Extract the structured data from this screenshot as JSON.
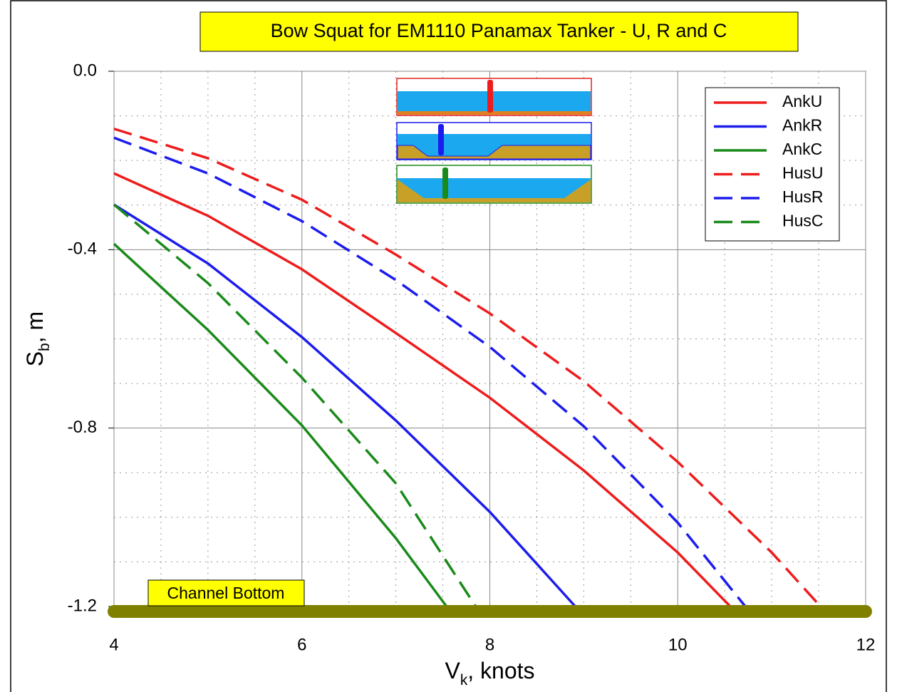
{
  "chart_data": {
    "type": "line",
    "title": "Bow Squat for EM1110 Panamax Tanker - U, R and C",
    "xlabel_parts": [
      "V",
      "k",
      ", knots"
    ],
    "ylabel_parts": [
      "S",
      "b",
      ", m"
    ],
    "xlim": [
      4,
      12
    ],
    "xticks": [
      4,
      6,
      8,
      10,
      12
    ],
    "ylim": [
      -1.2,
      0
    ],
    "yticks": [
      {
        "value": 0,
        "label": "0.0"
      },
      -0.4,
      -0.8,
      -1.2
    ],
    "grid": true,
    "minor_grid_divisions": 4,
    "legend": "upper right",
    "annotation": {
      "text": "Channel Bottom",
      "value": -1.2,
      "color": "#808000"
    },
    "series": [
      {
        "name": "AnkU",
        "color": "#ee1c1c",
        "dashed": false,
        "x": [
          4,
          5,
          6,
          7,
          8,
          9,
          10,
          10.56
        ],
        "values": [
          -0.229,
          -0.324,
          -0.444,
          -0.587,
          -0.732,
          -0.895,
          -1.079,
          -1.2
        ]
      },
      {
        "name": "AnkR",
        "color": "#1c1cee",
        "dashed": false,
        "x": [
          4,
          5,
          6,
          7,
          8,
          8.91
        ],
        "values": [
          -0.299,
          -0.431,
          -0.596,
          -0.783,
          -0.988,
          -1.2
        ]
      },
      {
        "name": "AnkC",
        "color": "#1a8a1a",
        "dashed": false,
        "x": [
          4,
          5,
          6,
          7,
          7.54
        ],
        "values": [
          -0.387,
          -0.58,
          -0.794,
          -1.047,
          -1.2
        ]
      },
      {
        "name": "HusU",
        "color": "#ee1c1c",
        "dashed": true,
        "x": [
          4,
          5,
          6,
          7,
          8,
          9,
          10,
          11,
          11.52
        ],
        "values": [
          -0.129,
          -0.195,
          -0.288,
          -0.411,
          -0.543,
          -0.695,
          -0.876,
          -1.079,
          -1.2
        ]
      },
      {
        "name": "HusR",
        "color": "#1c1cee",
        "dashed": true,
        "x": [
          4,
          5,
          6,
          7,
          8,
          9,
          10,
          10.72
        ],
        "values": [
          -0.149,
          -0.229,
          -0.336,
          -0.468,
          -0.618,
          -0.796,
          -1.012,
          -1.2
        ]
      },
      {
        "name": "HusC",
        "color": "#1a8a1a",
        "dashed": true,
        "x": [
          4,
          5,
          6,
          7,
          7.85
        ],
        "values": [
          -0.299,
          -0.475,
          -0.687,
          -0.924,
          -1.2
        ]
      }
    ]
  }
}
